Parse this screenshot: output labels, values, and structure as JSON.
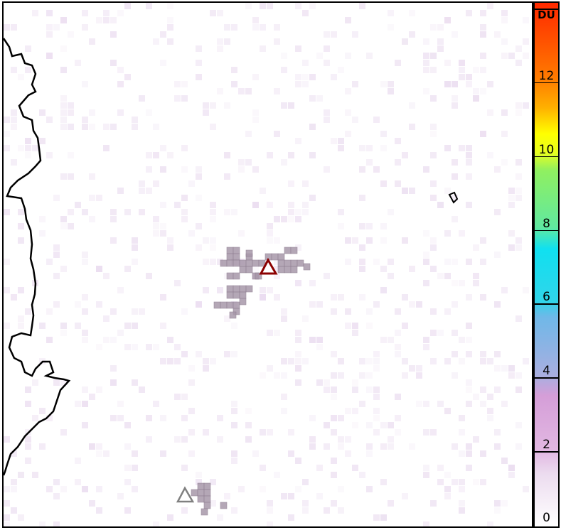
{
  "colorbar": {
    "unit": "DU",
    "ticks": [
      "0",
      "2",
      "4",
      "6",
      "8",
      "10",
      "12"
    ],
    "range": [
      0,
      14
    ]
  },
  "markers": {
    "primary_volcano": {
      "color": "#8b0000",
      "shape": "triangle"
    },
    "secondary_volcano": {
      "color": "#808080",
      "shape": "triangle"
    }
  },
  "colors": {
    "plume": "#a898aa",
    "background_noise": "#e8d8ee",
    "coastline": "#000000"
  }
}
